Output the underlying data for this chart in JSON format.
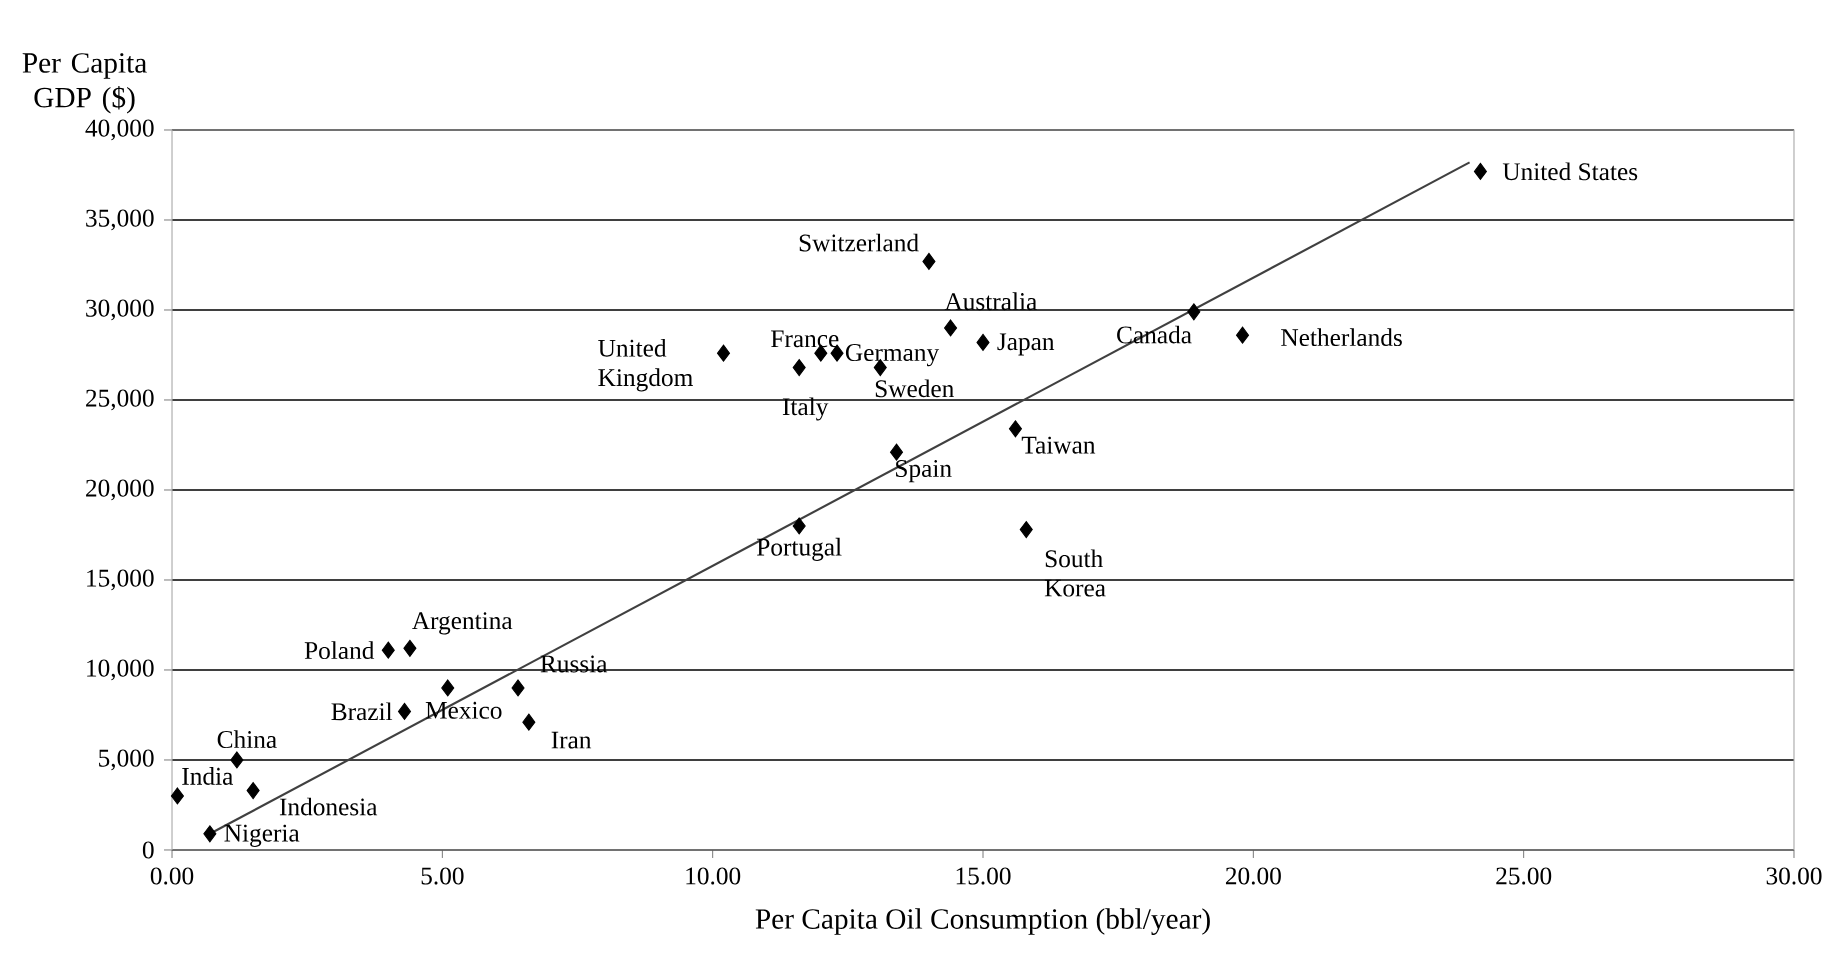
{
  "chart_data": {
    "type": "scatter",
    "xlabel": "Per Capita Oil Consumption (bbl/year)",
    "ylabel": "Per Capita GDP ($)",
    "xlim": [
      0,
      30
    ],
    "ylim": [
      0,
      40000
    ],
    "xticks": [
      {
        "value": 0,
        "label": "0.00"
      },
      {
        "value": 5,
        "label": "5.00"
      },
      {
        "value": 10,
        "label": "10.00"
      },
      {
        "value": 15,
        "label": "15.00"
      },
      {
        "value": 20,
        "label": "20.00"
      },
      {
        "value": 25,
        "label": "25.00"
      },
      {
        "value": 30,
        "label": "30.00"
      }
    ],
    "yticks": [
      {
        "value": 0,
        "label": "0"
      },
      {
        "value": 5000,
        "label": "5,000"
      },
      {
        "value": 10000,
        "label": "10,000"
      },
      {
        "value": 15000,
        "label": "15,000"
      },
      {
        "value": 20000,
        "label": "20,000"
      },
      {
        "value": 25000,
        "label": "25,000"
      },
      {
        "value": 30000,
        "label": "30,000"
      },
      {
        "value": 35000,
        "label": "35,000"
      },
      {
        "value": 40000,
        "label": "40,000"
      }
    ],
    "grid": "y",
    "marker": "diamond",
    "series": [
      {
        "color": "#000000",
        "x": [
          0.1,
          0.7,
          1.2,
          1.5,
          4.0,
          4.4,
          4.3,
          5.1,
          6.4,
          6.6,
          10.2,
          11.6,
          12.0,
          12.3,
          13.1,
          14.0,
          14.4,
          15.0,
          13.4,
          15.6,
          11.6,
          15.8,
          18.9,
          19.8,
          24.2
        ],
        "values": [
          3000,
          900,
          5000,
          3300,
          11100,
          11200,
          7700,
          9000,
          9000,
          7100,
          27600,
          26800,
          27600,
          27600,
          26800,
          32700,
          29000,
          28200,
          22100,
          23400,
          18000,
          17800,
          29900,
          28600,
          37700
        ]
      },
      {
        "type": "line",
        "marker": "none",
        "color": "#404040",
        "x": [
          0.7,
          24.0
        ],
        "values": [
          900,
          38200
        ]
      }
    ],
    "annotations": [
      {
        "text": "India",
        "x": 0.1,
        "y": 3000
      },
      {
        "text": "Nigeria",
        "x": 0.7,
        "y": 900
      },
      {
        "text": "China",
        "x": 1.2,
        "y": 5000
      },
      {
        "text": "Indonesia",
        "x": 1.5,
        "y": 3300
      },
      {
        "text": "Poland",
        "x": 4.0,
        "y": 11100
      },
      {
        "text": "Argentina",
        "x": 4.4,
        "y": 11200
      },
      {
        "text": "Brazil",
        "x": 4.3,
        "y": 7700
      },
      {
        "text": "Mexico",
        "x": 5.1,
        "y": 9000
      },
      {
        "text": "Russia",
        "x": 6.4,
        "y": 9000
      },
      {
        "text": "Iran",
        "x": 6.6,
        "y": 7100
      },
      {
        "text": "United Kingdom",
        "x": 10.2,
        "y": 27600
      },
      {
        "text": "Italy",
        "x": 11.6,
        "y": 26800
      },
      {
        "text": "France",
        "x": 12.0,
        "y": 27600
      },
      {
        "text": "Germany",
        "x": 12.3,
        "y": 27600
      },
      {
        "text": "Sweden",
        "x": 13.1,
        "y": 26800
      },
      {
        "text": "Switzerland",
        "x": 14.0,
        "y": 32700
      },
      {
        "text": "Australia",
        "x": 14.4,
        "y": 29000
      },
      {
        "text": "Japan",
        "x": 15.0,
        "y": 28200
      },
      {
        "text": "Spain",
        "x": 13.4,
        "y": 22100
      },
      {
        "text": "Taiwan",
        "x": 15.6,
        "y": 23400
      },
      {
        "text": "Portugal",
        "x": 11.6,
        "y": 18000
      },
      {
        "text": "South Korea",
        "x": 15.8,
        "y": 17800
      },
      {
        "text": "Canada",
        "x": 18.9,
        "y": 29900
      },
      {
        "text": "Netherlands",
        "x": 19.8,
        "y": 28600
      },
      {
        "text": "United States",
        "x": 24.2,
        "y": 37700
      }
    ]
  }
}
